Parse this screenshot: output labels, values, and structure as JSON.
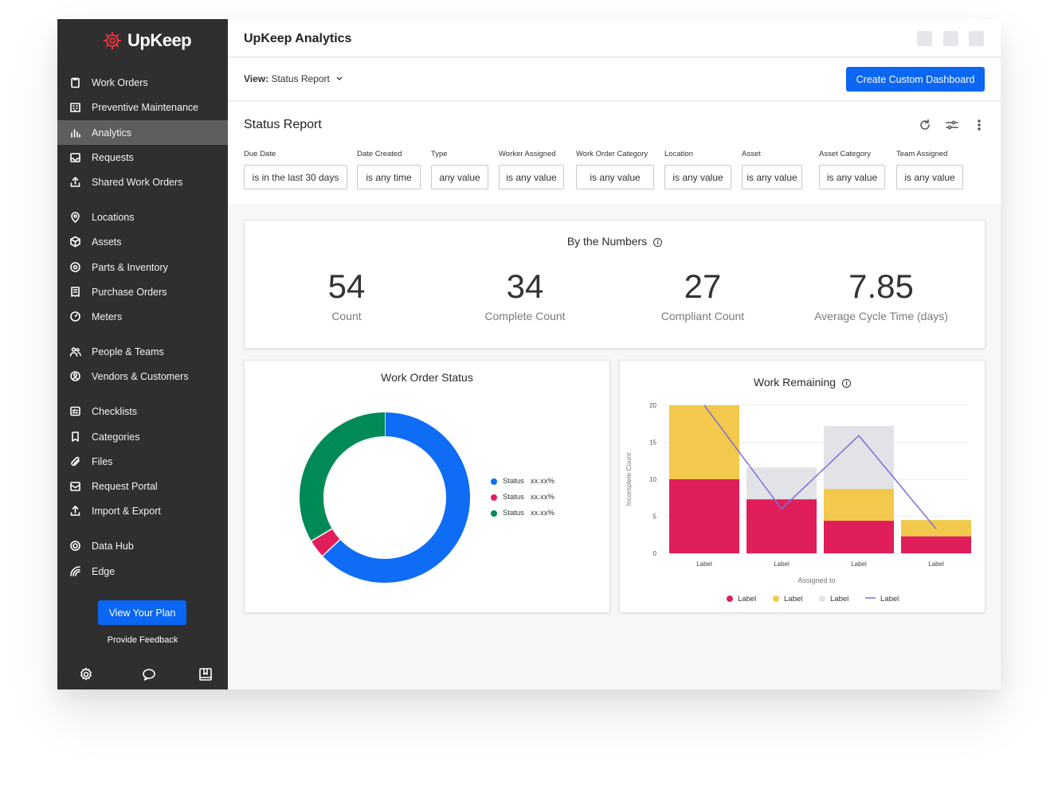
{
  "brand": {
    "name": "UpKeep",
    "accent": "#e8353f"
  },
  "sidebar": {
    "items": [
      {
        "label": "Work Orders",
        "icon": "clipboard-icon"
      },
      {
        "label": "Preventive Maintenance",
        "icon": "building-icon"
      },
      {
        "label": "Analytics",
        "icon": "bar-chart-icon",
        "active": true
      },
      {
        "label": "Requests",
        "icon": "inbox-icon"
      },
      {
        "label": "Shared Work Orders",
        "icon": "share-icon"
      },
      {
        "label": "Locations",
        "icon": "location-pin-icon"
      },
      {
        "label": "Assets",
        "icon": "cube-icon"
      },
      {
        "label": "Parts & Inventory",
        "icon": "gear-part-icon"
      },
      {
        "label": "Purchase Orders",
        "icon": "receipt-icon"
      },
      {
        "label": "Meters",
        "icon": "gauge-icon"
      },
      {
        "label": "People & Teams",
        "icon": "people-icon"
      },
      {
        "label": "Vendors & Customers",
        "icon": "vendor-icon"
      },
      {
        "label": "Checklists",
        "icon": "checklist-icon"
      },
      {
        "label": "Categories",
        "icon": "bookmark-icon"
      },
      {
        "label": "Files",
        "icon": "paperclip-icon"
      },
      {
        "label": "Request Portal",
        "icon": "portal-icon"
      },
      {
        "label": "Import & Export",
        "icon": "upload-icon"
      },
      {
        "label": "Data Hub",
        "icon": "target-icon"
      },
      {
        "label": "Edge",
        "icon": "signal-icon"
      }
    ],
    "plan_button": "View Your Plan",
    "feedback": "Provide Feedback",
    "bottom_icons": [
      "settings-icon",
      "chat-icon",
      "book-icon"
    ]
  },
  "header": {
    "title": "UpKeep Analytics"
  },
  "viewbar": {
    "view_label": "View:",
    "view_value": "Status Report",
    "create_button": "Create Custom Dashboard"
  },
  "report": {
    "title": "Status Report",
    "tools": [
      "refresh-icon",
      "sliders-icon",
      "more-vertical-icon"
    ],
    "filters": [
      {
        "label": "Due Date",
        "value": "is in the last 30 days"
      },
      {
        "label": "Date Created",
        "value": "is any time"
      },
      {
        "label": "Type",
        "value": "any value"
      },
      {
        "label": "Worker Assigned",
        "value": "is any value"
      },
      {
        "label": "Work Order Category",
        "value": "is any value"
      },
      {
        "label": "Location",
        "value": "is any value"
      },
      {
        "label": "Asset",
        "value": "is any value"
      },
      {
        "label": "Asset Category",
        "value": "is any value"
      },
      {
        "label": "Team Assigned",
        "value": "is any value"
      }
    ]
  },
  "numbers": {
    "title": "By the Numbers",
    "stats": [
      {
        "value": "54",
        "label": "Count"
      },
      {
        "value": "34",
        "label": "Complete Count"
      },
      {
        "value": "27",
        "label": "Compliant Count"
      },
      {
        "value": "7.85",
        "label": "Average Cycle Time (days)"
      }
    ]
  },
  "work_order_status": {
    "title": "Work Order Status",
    "legend": [
      {
        "label": "Status",
        "pct": "xx.xx%"
      },
      {
        "label": "Status",
        "pct": "xx.xx%"
      },
      {
        "label": "Status",
        "pct": "xx.xx%"
      }
    ]
  },
  "work_remaining": {
    "title": "Work Remaining",
    "legend": [
      "Label",
      "Label",
      "Label",
      "Label"
    ]
  },
  "chart_data": [
    {
      "type": "pie",
      "title": "Work Order Status",
      "categories": [
        "Status",
        "Status",
        "Status"
      ],
      "values": [
        63,
        3.5,
        33.5
      ],
      "colors": [
        "#0f6cf5",
        "#e01e5a",
        "#008a58"
      ],
      "donut": true
    },
    {
      "type": "bar",
      "title": "Work Remaining",
      "stacked": true,
      "categories": [
        "Label",
        "Label",
        "Label",
        "Label"
      ],
      "xlabel": "Assigned to",
      "ylabel": "Incomplete Count",
      "ylim": [
        0,
        20
      ],
      "yticks": [
        0,
        5,
        10,
        15,
        20
      ],
      "series": [
        {
          "name": "Label",
          "kind": "bar",
          "color": "#e01e5a",
          "values": [
            10,
            7.3,
            4.4,
            2.3
          ]
        },
        {
          "name": "Label",
          "kind": "bar",
          "color": "#f2c94c",
          "values": [
            10,
            0,
            4.3,
            2.2
          ]
        },
        {
          "name": "Label",
          "kind": "bar",
          "color": "#e1e3e6",
          "values": [
            0,
            4.3,
            8.5,
            0
          ]
        },
        {
          "name": "Label",
          "kind": "line",
          "color": "#7b6fd8",
          "values": [
            20,
            6,
            15.9,
            3.3
          ]
        }
      ],
      "grid": true,
      "legend_position": "bottom"
    }
  ]
}
